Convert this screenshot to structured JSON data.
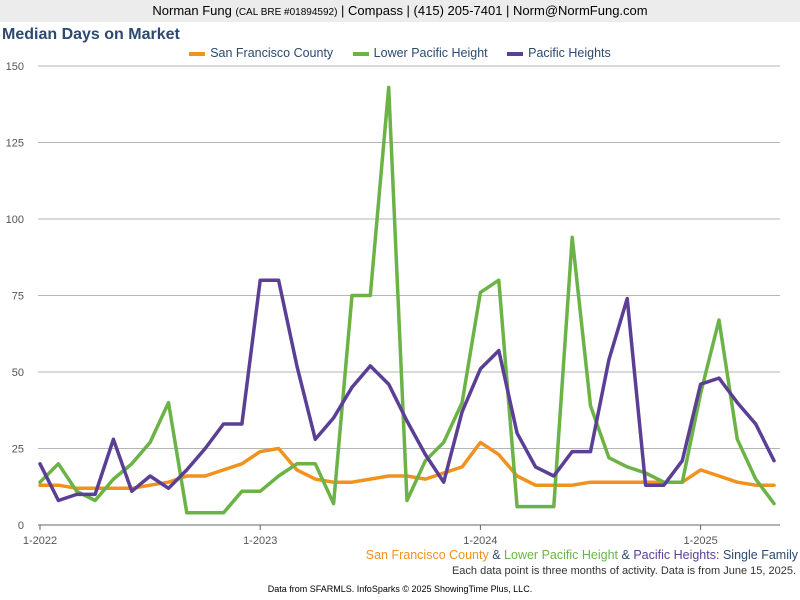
{
  "header": {
    "name": "Norman Fung",
    "license": "(CAL BRE #01894592)",
    "rest": "| Compass | (415) 205-7401 | Norm@NormFung.com"
  },
  "chart_data": {
    "type": "line",
    "title": "Median Days on Market",
    "xlabel": "",
    "ylabel": "",
    "ylim": [
      0,
      150
    ],
    "yticks": [
      "0",
      "25",
      "50",
      "75",
      "100",
      "125",
      "150"
    ],
    "x_ticks": [
      "1-2022",
      "1-2023",
      "1-2024",
      "1-2025"
    ],
    "x_range": [
      "1-2022",
      "5-2025"
    ],
    "grid": true,
    "legend_position": "top-center",
    "x": [
      "1-2022",
      "2-2022",
      "3-2022",
      "4-2022",
      "5-2022",
      "6-2022",
      "7-2022",
      "8-2022",
      "9-2022",
      "10-2022",
      "11-2022",
      "12-2022",
      "1-2023",
      "2-2023",
      "3-2023",
      "4-2023",
      "5-2023",
      "6-2023",
      "7-2023",
      "8-2023",
      "9-2023",
      "10-2023",
      "11-2023",
      "12-2023",
      "1-2024",
      "2-2024",
      "3-2024",
      "4-2024",
      "5-2024",
      "6-2024",
      "7-2024",
      "8-2024",
      "9-2024",
      "10-2024",
      "11-2024",
      "12-2024",
      "1-2025",
      "2-2025",
      "3-2025",
      "4-2025",
      "5-2025"
    ],
    "series": [
      {
        "name": "San Francisco County",
        "color": "#f0921e",
        "values": [
          13,
          13,
          12,
          12,
          12,
          12,
          13,
          14,
          16,
          16,
          18,
          20,
          24,
          25,
          18,
          15,
          14,
          14,
          15,
          16,
          16,
          15,
          17,
          19,
          27,
          23,
          16,
          13,
          13,
          13,
          14,
          14,
          14,
          14,
          14,
          14,
          18,
          16,
          14,
          13,
          13
        ]
      },
      {
        "name": "Lower Pacific Height",
        "color": "#6bb347",
        "values": [
          14,
          20,
          11,
          8,
          15,
          20,
          27,
          40,
          4,
          4,
          4,
          11,
          11,
          16,
          20,
          20,
          7,
          75,
          75,
          143,
          8,
          21,
          27,
          40,
          76,
          80,
          6,
          6,
          6,
          94,
          39,
          22,
          19,
          17,
          14,
          14,
          43,
          67,
          28,
          15,
          7
        ]
      },
      {
        "name": "Pacific Heights",
        "color": "#5b3f95",
        "values": [
          20,
          8,
          10,
          10,
          28,
          11,
          16,
          12,
          18,
          25,
          33,
          33,
          80,
          80,
          52,
          28,
          35,
          45,
          52,
          46,
          34,
          23,
          14,
          37,
          51,
          57,
          30,
          19,
          16,
          24,
          24,
          54,
          74,
          13,
          13,
          21,
          46,
          48,
          40,
          33,
          21
        ]
      }
    ],
    "subtitle": {
      "sf": "San Francisco County",
      "amp1": "&",
      "lph": "Lower Pacific Height",
      "amp2": "&",
      "ph": "Pacific Heights",
      "suffix": "Single Family"
    },
    "note": "Each data point is three months of activity. Data is from June 15, 2025."
  },
  "footer": "Data from SFARMLS. InfoSparks © 2025 ShowingTime Plus, LLC."
}
